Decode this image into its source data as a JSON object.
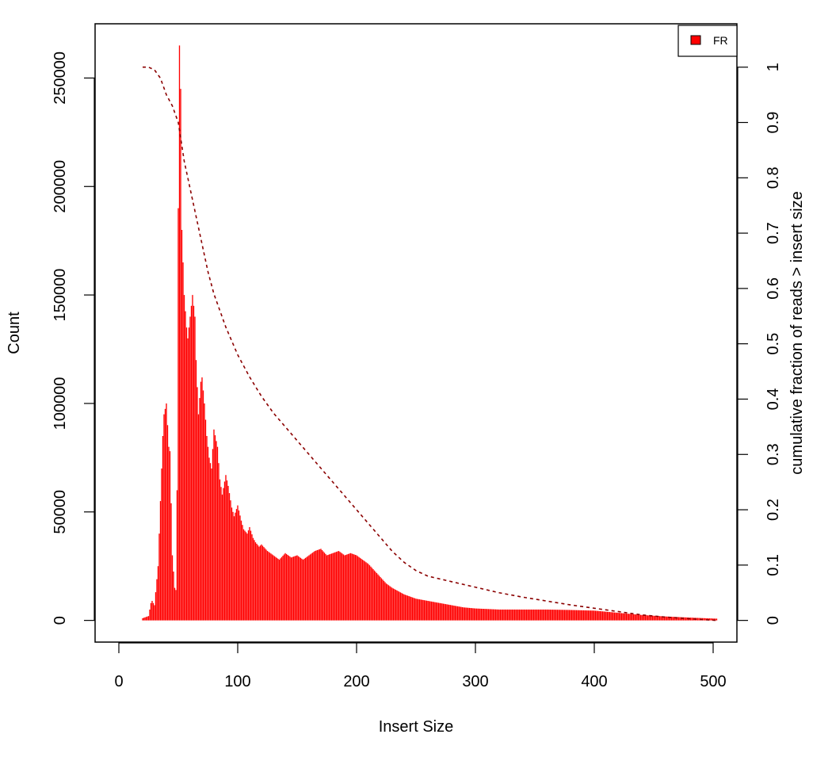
{
  "chart_data": {
    "type": "bar",
    "xlabel": "Insert Size",
    "ylabel": "Count",
    "y2label": "cumulative fraction of reads > insert size",
    "xlim": [
      -20,
      520
    ],
    "ylim": [
      -10000,
      275000
    ],
    "y2lim": [
      -0.0392,
      1.0784
    ],
    "xticks": [
      0,
      100,
      200,
      300,
      400,
      500
    ],
    "yticks": [
      0,
      50000,
      100000,
      150000,
      200000,
      250000
    ],
    "y2ticks": [
      0,
      0.1,
      0.2,
      0.3,
      0.4,
      0.5,
      0.6,
      0.7,
      0.8,
      0.9,
      1
    ],
    "bar_color": "#ff0000",
    "line_color": "#8b0000",
    "legend": {
      "position": "top-right",
      "entries": [
        {
          "label": "FR",
          "color": "#ff0000"
        }
      ]
    },
    "histogram_profile": {
      "x": [
        20,
        25,
        27,
        28,
        30,
        33,
        35,
        37,
        38,
        40,
        41,
        42,
        43,
        45,
        47,
        48,
        49,
        50,
        51,
        52,
        53,
        55,
        57,
        58,
        60,
        62,
        64,
        65,
        67,
        69,
        70,
        72,
        74,
        76,
        78,
        80,
        83,
        85,
        87,
        90,
        92,
        95,
        97,
        100,
        103,
        105,
        108,
        110,
        113,
        115,
        118,
        120,
        125,
        130,
        135,
        140,
        145,
        150,
        155,
        160,
        165,
        170,
        175,
        180,
        185,
        190,
        195,
        200,
        205,
        210,
        215,
        220,
        225,
        230,
        240,
        250,
        260,
        270,
        280,
        290,
        300,
        320,
        340,
        360,
        380,
        400,
        420,
        440,
        460,
        480,
        503
      ],
      "counts": [
        1000,
        2000,
        8000,
        9000,
        7000,
        25000,
        55000,
        85000,
        95000,
        100000,
        90000,
        80000,
        78000,
        30000,
        15000,
        14000,
        60000,
        190000,
        265000,
        245000,
        180000,
        150000,
        135000,
        130000,
        140000,
        150000,
        140000,
        120000,
        95000,
        110000,
        112000,
        100000,
        85000,
        75000,
        70000,
        88000,
        80000,
        65000,
        58000,
        67000,
        62000,
        52000,
        48000,
        53000,
        46000,
        42000,
        40000,
        43000,
        38000,
        36000,
        34000,
        35000,
        32000,
        30000,
        28000,
        31000,
        29000,
        30000,
        28000,
        30000,
        32000,
        33000,
        30000,
        31000,
        32000,
        30000,
        31000,
        30000,
        28000,
        26000,
        23000,
        20000,
        17000,
        15000,
        12000,
        10000,
        9000,
        8000,
        7000,
        6000,
        5500,
        5000,
        5000,
        5000,
        4800,
        4500,
        3500,
        2500,
        1800,
        1300,
        800
      ]
    },
    "cumulative_line": {
      "x": [
        20,
        25,
        30,
        35,
        40,
        45,
        50,
        55,
        60,
        65,
        70,
        75,
        80,
        90,
        100,
        110,
        120,
        130,
        140,
        150,
        160,
        170,
        180,
        190,
        200,
        210,
        220,
        230,
        240,
        250,
        260,
        280,
        300,
        320,
        340,
        360,
        380,
        400,
        420,
        440,
        460,
        480,
        503
      ],
      "y": [
        1,
        1,
        0.995,
        0.98,
        0.95,
        0.93,
        0.9,
        0.83,
        0.78,
        0.73,
        0.68,
        0.63,
        0.59,
        0.53,
        0.48,
        0.44,
        0.405,
        0.375,
        0.35,
        0.325,
        0.3,
        0.275,
        0.25,
        0.225,
        0.2,
        0.175,
        0.15,
        0.125,
        0.105,
        0.09,
        0.08,
        0.07,
        0.06,
        0.05,
        0.042,
        0.035,
        0.028,
        0.022,
        0.016,
        0.01,
        0.006,
        0.003,
        0
      ]
    }
  }
}
